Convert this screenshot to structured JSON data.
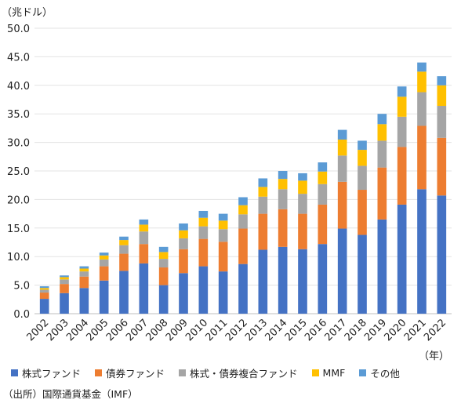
{
  "chart_data": {
    "type": "bar",
    "stacked": true,
    "y_unit_label": "（兆ドル）",
    "x_unit_label": "（年）",
    "ylim": [
      0,
      50
    ],
    "yticks": [
      "0.0",
      "5.0",
      "10.0",
      "15.0",
      "20.0",
      "25.0",
      "30.0",
      "35.0",
      "40.0",
      "45.0",
      "50.0"
    ],
    "categories": [
      "2002",
      "2003",
      "2004",
      "2005",
      "2006",
      "2007",
      "2008",
      "2009",
      "2010",
      "2011",
      "2012",
      "2013",
      "2014",
      "2015",
      "2016",
      "2017",
      "2018",
      "2019",
      "2020",
      "2021",
      "2022"
    ],
    "series": [
      {
        "name": "株式ファンド",
        "color": "#4472C4",
        "values": [
          2.6,
          3.6,
          4.5,
          5.8,
          7.5,
          8.8,
          5.0,
          7.1,
          8.3,
          7.4,
          8.7,
          11.2,
          11.7,
          11.3,
          12.2,
          14.9,
          13.8,
          16.5,
          19.1,
          21.8,
          20.7
        ]
      },
      {
        "name": "債券ファンド",
        "color": "#ED7D31",
        "values": [
          1.1,
          1.6,
          2.0,
          2.5,
          3.0,
          3.4,
          3.1,
          4.2,
          4.8,
          5.2,
          6.2,
          6.3,
          6.6,
          6.2,
          6.9,
          8.2,
          7.9,
          9.1,
          10.1,
          11.1,
          10.1
        ]
      },
      {
        "name": "株式・債券複合ファンド",
        "color": "#A5A5A5",
        "values": [
          0.5,
          0.8,
          0.9,
          1.2,
          1.5,
          2.2,
          1.5,
          1.9,
          2.2,
          2.2,
          2.5,
          3.0,
          3.5,
          3.5,
          3.6,
          4.6,
          4.2,
          4.7,
          5.3,
          5.9,
          5.6
        ]
      },
      {
        "name": "MMF",
        "color": "#FFC000",
        "values": [
          0.3,
          0.4,
          0.5,
          0.7,
          0.9,
          1.2,
          1.2,
          1.4,
          1.5,
          1.5,
          1.6,
          1.7,
          1.8,
          2.3,
          2.2,
          2.8,
          2.8,
          2.9,
          3.5,
          3.6,
          3.6
        ]
      },
      {
        "name": "その他",
        "color": "#5B9BD5",
        "values": [
          0.3,
          0.3,
          0.4,
          0.5,
          0.6,
          0.9,
          0.9,
          1.2,
          1.2,
          1.2,
          1.4,
          1.5,
          1.4,
          1.3,
          1.6,
          1.7,
          1.6,
          1.8,
          1.8,
          1.6,
          1.6
        ]
      }
    ]
  },
  "source_note": "（出所）国際通貨基金（IMF）"
}
